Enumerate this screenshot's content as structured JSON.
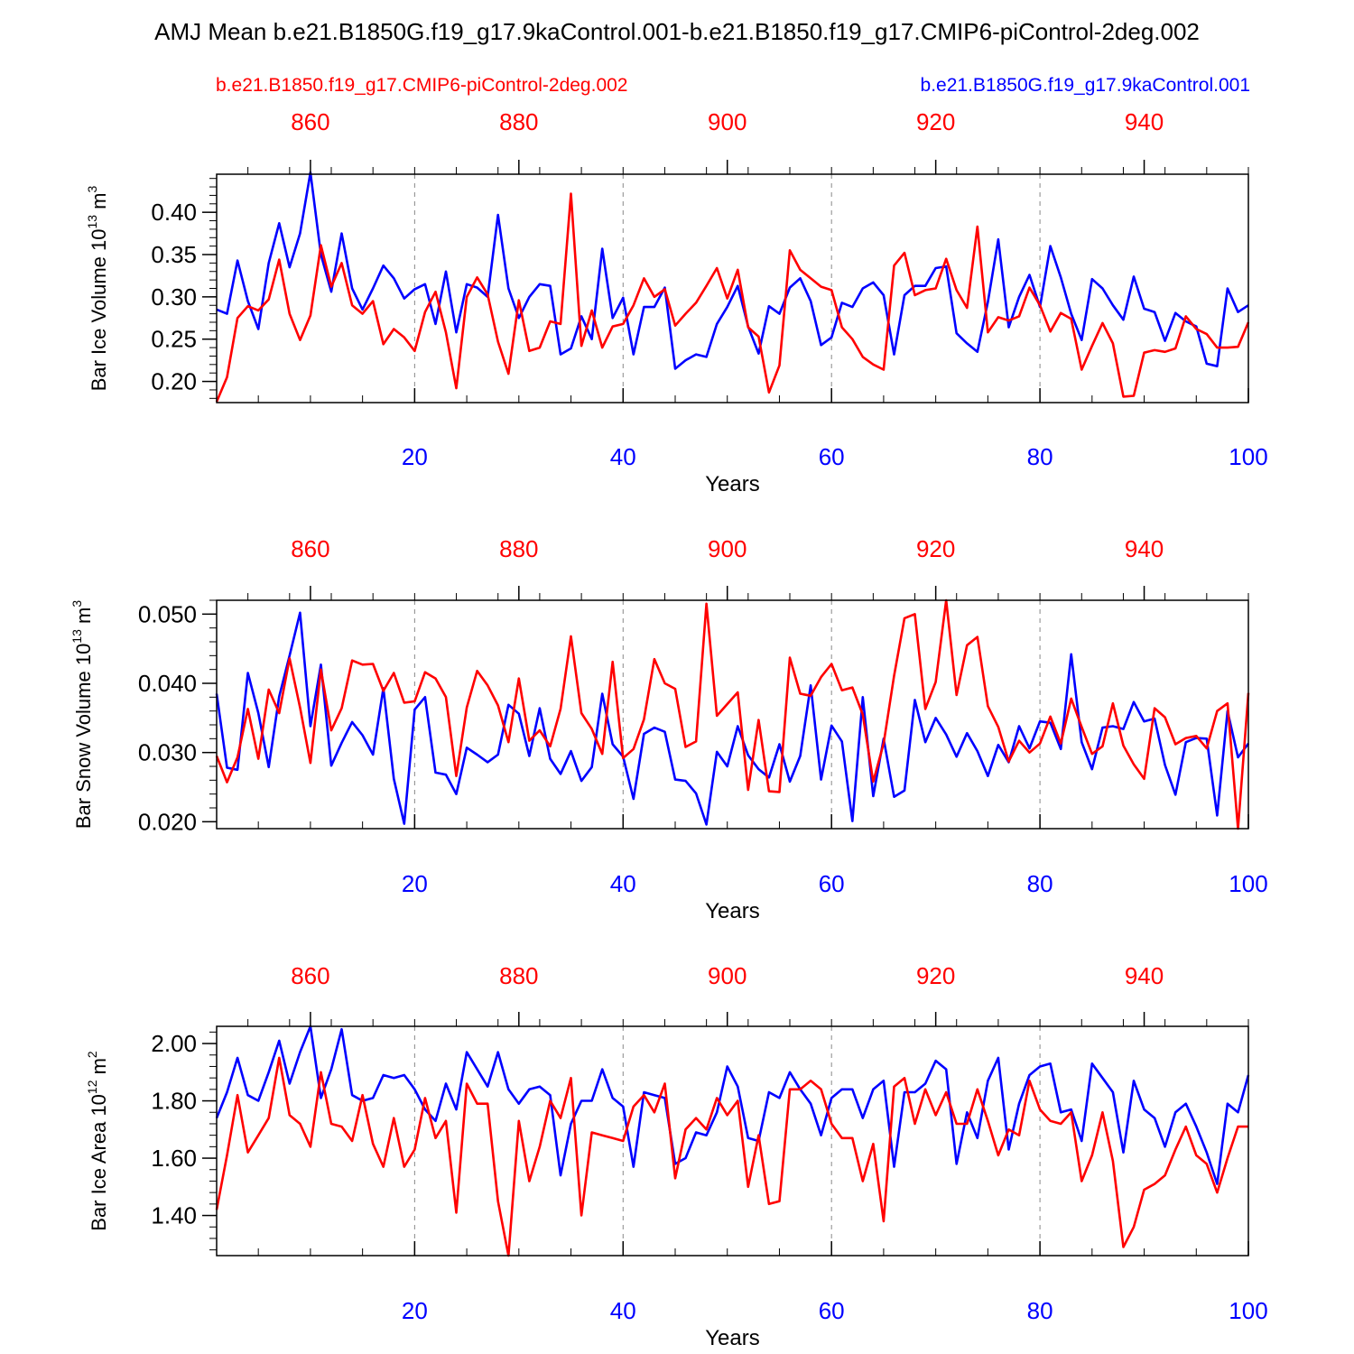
{
  "page": {
    "title": "AMJ Mean b.e21.B1850G.f19_g17.9kaControl.001-b.e21.B1850.f19_g17.CMIP6-piControl-2deg.002",
    "legend_red": "b.e21.B1850.f19_g17.CMIP6-piControl-2deg.002",
    "legend_blue": "b.e21.B1850G.f19_g17.9kaControl.001",
    "colors": {
      "red": "#ff0000",
      "blue": "#0000ff",
      "axis": "#000000",
      "grid": "#888888"
    }
  },
  "chart_data": [
    {
      "type": "line",
      "ylabel": {
        "text": "Bar Ice Volume 10",
        "sup": "13",
        "unit": " m",
        "unit_sup": "3"
      },
      "xlabel": "Years",
      "xlim": [
        1,
        100
      ],
      "ylim": [
        0.175,
        0.445
      ],
      "yticks": [
        0.2,
        0.25,
        0.3,
        0.35,
        0.4
      ],
      "ytick_labels": [
        "0.20",
        "0.25",
        "0.30",
        "0.35",
        "0.40"
      ],
      "yminor_step": 0.01,
      "top_axis": {
        "ticks": [
          860,
          880,
          900,
          920,
          940
        ],
        "labels": [
          "860",
          "880",
          "900",
          "920",
          "940"
        ],
        "offset": 850
      },
      "bottom_axis": {
        "ticks": [
          20,
          40,
          60,
          80,
          100
        ],
        "labels": [
          "20",
          "40",
          "60",
          "80",
          "100"
        ]
      },
      "x": [
        1,
        2,
        3,
        4,
        5,
        6,
        7,
        8,
        9,
        10,
        11,
        12,
        13,
        14,
        15,
        16,
        17,
        18,
        19,
        20,
        21,
        22,
        23,
        24,
        25,
        26,
        27,
        28,
        29,
        30,
        31,
        32,
        33,
        34,
        35,
        36,
        37,
        38,
        39,
        40,
        41,
        42,
        43,
        44,
        45,
        46,
        47,
        48,
        49,
        50,
        51,
        52,
        53,
        54,
        55,
        56,
        57,
        58,
        59,
        60,
        61,
        62,
        63,
        64,
        65,
        66,
        67,
        68,
        69,
        70,
        71,
        72,
        73,
        74,
        75,
        76,
        77,
        78,
        79,
        80,
        81,
        82,
        83,
        84,
        85,
        86,
        87,
        88,
        89,
        90,
        91,
        92,
        93,
        94,
        95,
        96,
        97,
        98,
        99,
        100
      ],
      "series": [
        {
          "name": "b.e21.B1850G.f19_g17.9kaControl.001",
          "color": "blue",
          "values": [
            0.285,
            0.28,
            0.343,
            0.295,
            0.262,
            0.34,
            0.387,
            0.335,
            0.375,
            0.447,
            0.35,
            0.306,
            0.375,
            0.31,
            0.285,
            0.31,
            0.337,
            0.322,
            0.298,
            0.309,
            0.315,
            0.268,
            0.33,
            0.258,
            0.315,
            0.311,
            0.3,
            0.397,
            0.31,
            0.275,
            0.3,
            0.315,
            0.313,
            0.232,
            0.239,
            0.277,
            0.25,
            0.357,
            0.275,
            0.299,
            0.232,
            0.288,
            0.288,
            0.311,
            0.215,
            0.225,
            0.232,
            0.229,
            0.268,
            0.288,
            0.313,
            0.265,
            0.233,
            0.289,
            0.28,
            0.311,
            0.322,
            0.295,
            0.243,
            0.252,
            0.293,
            0.288,
            0.31,
            0.317,
            0.302,
            0.232,
            0.302,
            0.313,
            0.313,
            0.334,
            0.336,
            0.257,
            0.245,
            0.235,
            0.294,
            0.368,
            0.264,
            0.3,
            0.326,
            0.288,
            0.36,
            0.323,
            0.28,
            0.249,
            0.321,
            0.31,
            0.29,
            0.273,
            0.324,
            0.286,
            0.282,
            0.248,
            0.281,
            0.271,
            0.265,
            0.221,
            0.218,
            0.31,
            0.282,
            0.29
          ]
        },
        {
          "name": "b.e21.B1850.f19_g17.CMIP6-piControl-2deg.002",
          "color": "red",
          "values": [
            0.176,
            0.205,
            0.275,
            0.289,
            0.284,
            0.297,
            0.344,
            0.28,
            0.249,
            0.278,
            0.361,
            0.312,
            0.34,
            0.29,
            0.28,
            0.295,
            0.244,
            0.262,
            0.252,
            0.236,
            0.282,
            0.306,
            0.258,
            0.192,
            0.3,
            0.323,
            0.303,
            0.247,
            0.209,
            0.296,
            0.236,
            0.24,
            0.271,
            0.268,
            0.422,
            0.242,
            0.284,
            0.24,
            0.265,
            0.268,
            0.29,
            0.322,
            0.3,
            0.309,
            0.266,
            0.28,
            0.293,
            0.313,
            0.334,
            0.298,
            0.332,
            0.264,
            0.253,
            0.187,
            0.219,
            0.355,
            0.332,
            0.322,
            0.312,
            0.308,
            0.264,
            0.25,
            0.229,
            0.22,
            0.214,
            0.337,
            0.352,
            0.302,
            0.308,
            0.31,
            0.345,
            0.308,
            0.287,
            0.383,
            0.258,
            0.276,
            0.272,
            0.277,
            0.311,
            0.29,
            0.259,
            0.281,
            0.274,
            0.214,
            0.242,
            0.269,
            0.245,
            0.182,
            0.183,
            0.234,
            0.237,
            0.235,
            0.239,
            0.277,
            0.262,
            0.256,
            0.24,
            0.24,
            0.241,
            0.27
          ]
        }
      ]
    },
    {
      "type": "line",
      "ylabel": {
        "text": "Bar Snow Volume 10",
        "sup": "13",
        "unit": " m",
        "unit_sup": "3"
      },
      "xlabel": "Years",
      "xlim": [
        1,
        100
      ],
      "ylim": [
        0.019,
        0.052
      ],
      "yticks": [
        0.02,
        0.03,
        0.04,
        0.05
      ],
      "ytick_labels": [
        "0.020",
        "0.030",
        "0.040",
        "0.050"
      ],
      "yminor_step": 0.002,
      "top_axis": {
        "ticks": [
          860,
          880,
          900,
          920,
          940
        ],
        "labels": [
          "860",
          "880",
          "900",
          "920",
          "940"
        ],
        "offset": 850
      },
      "bottom_axis": {
        "ticks": [
          20,
          40,
          60,
          80,
          100
        ],
        "labels": [
          "20",
          "40",
          "60",
          "80",
          "100"
        ]
      },
      "x": [
        1,
        2,
        3,
        4,
        5,
        6,
        7,
        8,
        9,
        10,
        11,
        12,
        13,
        14,
        15,
        16,
        17,
        18,
        19,
        20,
        21,
        22,
        23,
        24,
        25,
        26,
        27,
        28,
        29,
        30,
        31,
        32,
        33,
        34,
        35,
        36,
        37,
        38,
        39,
        40,
        41,
        42,
        43,
        44,
        45,
        46,
        47,
        48,
        49,
        50,
        51,
        52,
        53,
        54,
        55,
        56,
        57,
        58,
        59,
        60,
        61,
        62,
        63,
        64,
        65,
        66,
        67,
        68,
        69,
        70,
        71,
        72,
        73,
        74,
        75,
        76,
        77,
        78,
        79,
        80,
        81,
        82,
        83,
        84,
        85,
        86,
        87,
        88,
        89,
        90,
        91,
        92,
        93,
        94,
        95,
        96,
        97,
        98,
        99,
        100
      ],
      "series": [
        {
          "name": "b.e21.B1850G.f19_g17.9kaControl.001",
          "color": "blue",
          "values": [
            0.0385,
            0.0278,
            0.0275,
            0.0415,
            0.0357,
            0.0279,
            0.0381,
            0.044,
            0.0502,
            0.0338,
            0.0427,
            0.0281,
            0.0314,
            0.0344,
            0.0325,
            0.0297,
            0.0393,
            0.0262,
            0.0197,
            0.0362,
            0.038,
            0.0271,
            0.0268,
            0.024,
            0.0307,
            0.0297,
            0.0286,
            0.0297,
            0.0369,
            0.0356,
            0.0295,
            0.0364,
            0.0291,
            0.0269,
            0.0302,
            0.0259,
            0.0279,
            0.0385,
            0.0312,
            0.0294,
            0.0233,
            0.0327,
            0.0336,
            0.033,
            0.0261,
            0.0259,
            0.0241,
            0.0196,
            0.0301,
            0.028,
            0.0338,
            0.0296,
            0.0276,
            0.0264,
            0.0312,
            0.0258,
            0.0295,
            0.0397,
            0.0261,
            0.0339,
            0.0316,
            0.0201,
            0.038,
            0.0237,
            0.032,
            0.0236,
            0.0245,
            0.0376,
            0.0315,
            0.035,
            0.0326,
            0.0294,
            0.0328,
            0.0302,
            0.0266,
            0.0311,
            0.0286,
            0.0338,
            0.0306,
            0.0345,
            0.0343,
            0.0305,
            0.0442,
            0.0315,
            0.0276,
            0.0336,
            0.0338,
            0.0334,
            0.0373,
            0.0345,
            0.0349,
            0.0282,
            0.0239,
            0.0315,
            0.0321,
            0.032,
            0.0209,
            0.036,
            0.0293,
            0.0313
          ]
        },
        {
          "name": "b.e21.B1850.f19_g17.CMIP6-piControl-2deg.002",
          "color": "red",
          "values": [
            0.0295,
            0.0257,
            0.0293,
            0.0363,
            0.0291,
            0.0391,
            0.0357,
            0.0436,
            0.0365,
            0.0285,
            0.042,
            0.0332,
            0.0364,
            0.0433,
            0.0427,
            0.0428,
            0.0389,
            0.0415,
            0.0372,
            0.0374,
            0.0416,
            0.0407,
            0.038,
            0.0266,
            0.0365,
            0.0418,
            0.0397,
            0.0368,
            0.0315,
            0.0407,
            0.0317,
            0.0332,
            0.0309,
            0.0363,
            0.0468,
            0.0357,
            0.0334,
            0.0298,
            0.0431,
            0.0292,
            0.0305,
            0.0348,
            0.0435,
            0.04,
            0.0392,
            0.0308,
            0.0316,
            0.0515,
            0.0353,
            0.037,
            0.0387,
            0.0246,
            0.0347,
            0.0244,
            0.0243,
            0.0437,
            0.0385,
            0.0382,
            0.0409,
            0.0428,
            0.039,
            0.0394,
            0.0355,
            0.0258,
            0.0313,
            0.0411,
            0.0494,
            0.05,
            0.0363,
            0.0402,
            0.052,
            0.0383,
            0.0455,
            0.0467,
            0.0367,
            0.0337,
            0.0287,
            0.0317,
            0.03,
            0.0313,
            0.0352,
            0.0313,
            0.0378,
            0.0337,
            0.0298,
            0.0309,
            0.0371,
            0.031,
            0.0283,
            0.0262,
            0.0364,
            0.0351,
            0.0312,
            0.0321,
            0.0324,
            0.0306,
            0.036,
            0.0371,
            0.019,
            0.0386
          ]
        }
      ]
    },
    {
      "type": "line",
      "ylabel": {
        "text": "Bar Ice Area 10",
        "sup": "12",
        "unit": " m",
        "unit_sup": "2"
      },
      "xlabel": "Years",
      "xlim": [
        1,
        100
      ],
      "ylim": [
        1.26,
        2.06
      ],
      "yticks": [
        1.4,
        1.6,
        1.8,
        2.0
      ],
      "ytick_labels": [
        "1.40",
        "1.60",
        "1.80",
        "2.00"
      ],
      "yminor_step": 0.04,
      "top_axis": {
        "ticks": [
          860,
          880,
          900,
          920,
          940
        ],
        "labels": [
          "860",
          "880",
          "900",
          "920",
          "940"
        ],
        "offset": 850
      },
      "bottom_axis": {
        "ticks": [
          20,
          40,
          60,
          80,
          100
        ],
        "labels": [
          "20",
          "40",
          "60",
          "80",
          "100"
        ]
      },
      "x": [
        1,
        2,
        3,
        4,
        5,
        6,
        7,
        8,
        9,
        10,
        11,
        12,
        13,
        14,
        15,
        16,
        17,
        18,
        19,
        20,
        21,
        22,
        23,
        24,
        25,
        26,
        27,
        28,
        29,
        30,
        31,
        32,
        33,
        34,
        35,
        36,
        37,
        38,
        39,
        40,
        41,
        42,
        43,
        44,
        45,
        46,
        47,
        48,
        49,
        50,
        51,
        52,
        53,
        54,
        55,
        56,
        57,
        58,
        59,
        60,
        61,
        62,
        63,
        64,
        65,
        66,
        67,
        68,
        69,
        70,
        71,
        72,
        73,
        74,
        75,
        76,
        77,
        78,
        79,
        80,
        81,
        82,
        83,
        84,
        85,
        86,
        87,
        88,
        89,
        90,
        91,
        92,
        93,
        94,
        95,
        96,
        97,
        98,
        99,
        100
      ],
      "series": [
        {
          "name": "b.e21.B1850G.f19_g17.9kaControl.001",
          "color": "blue",
          "values": [
            1.74,
            1.83,
            1.95,
            1.82,
            1.8,
            1.9,
            2.01,
            1.86,
            1.97,
            2.06,
            1.81,
            1.91,
            2.05,
            1.82,
            1.8,
            1.81,
            1.89,
            1.88,
            1.89,
            1.84,
            1.77,
            1.73,
            1.86,
            1.77,
            1.97,
            1.91,
            1.85,
            1.97,
            1.84,
            1.79,
            1.84,
            1.85,
            1.82,
            1.54,
            1.72,
            1.8,
            1.8,
            1.91,
            1.81,
            1.78,
            1.57,
            1.83,
            1.82,
            1.81,
            1.58,
            1.6,
            1.69,
            1.68,
            1.76,
            1.92,
            1.85,
            1.67,
            1.66,
            1.83,
            1.81,
            1.9,
            1.84,
            1.79,
            1.68,
            1.81,
            1.84,
            1.84,
            1.74,
            1.84,
            1.87,
            1.57,
            1.83,
            1.83,
            1.86,
            1.94,
            1.91,
            1.58,
            1.76,
            1.67,
            1.87,
            1.95,
            1.63,
            1.79,
            1.89,
            1.92,
            1.93,
            1.76,
            1.77,
            1.66,
            1.93,
            1.88,
            1.83,
            1.62,
            1.87,
            1.77,
            1.74,
            1.64,
            1.76,
            1.79,
            1.71,
            1.62,
            1.51,
            1.79,
            1.76,
            1.89
          ]
        },
        {
          "name": "b.e21.B1850.f19_g17.CMIP6-piControl-2deg.002",
          "color": "red",
          "values": [
            1.42,
            1.61,
            1.82,
            1.62,
            1.68,
            1.74,
            1.95,
            1.75,
            1.72,
            1.64,
            1.9,
            1.72,
            1.71,
            1.66,
            1.82,
            1.65,
            1.57,
            1.74,
            1.57,
            1.63,
            1.81,
            1.67,
            1.73,
            1.41,
            1.86,
            1.79,
            1.79,
            1.45,
            1.26,
            1.73,
            1.52,
            1.64,
            1.8,
            1.74,
            1.88,
            1.4,
            1.69,
            1.68,
            1.67,
            1.66,
            1.78,
            1.82,
            1.76,
            1.86,
            1.53,
            1.7,
            1.74,
            1.7,
            1.81,
            1.75,
            1.8,
            1.5,
            1.68,
            1.44,
            1.45,
            1.84,
            1.84,
            1.87,
            1.84,
            1.72,
            1.67,
            1.67,
            1.52,
            1.65,
            1.38,
            1.85,
            1.88,
            1.72,
            1.84,
            1.75,
            1.83,
            1.72,
            1.72,
            1.84,
            1.73,
            1.61,
            1.7,
            1.68,
            1.87,
            1.77,
            1.73,
            1.72,
            1.76,
            1.52,
            1.61,
            1.76,
            1.59,
            1.29,
            1.36,
            1.49,
            1.51,
            1.54,
            1.63,
            1.71,
            1.61,
            1.58,
            1.48,
            1.6,
            1.71,
            1.71
          ]
        }
      ]
    }
  ]
}
